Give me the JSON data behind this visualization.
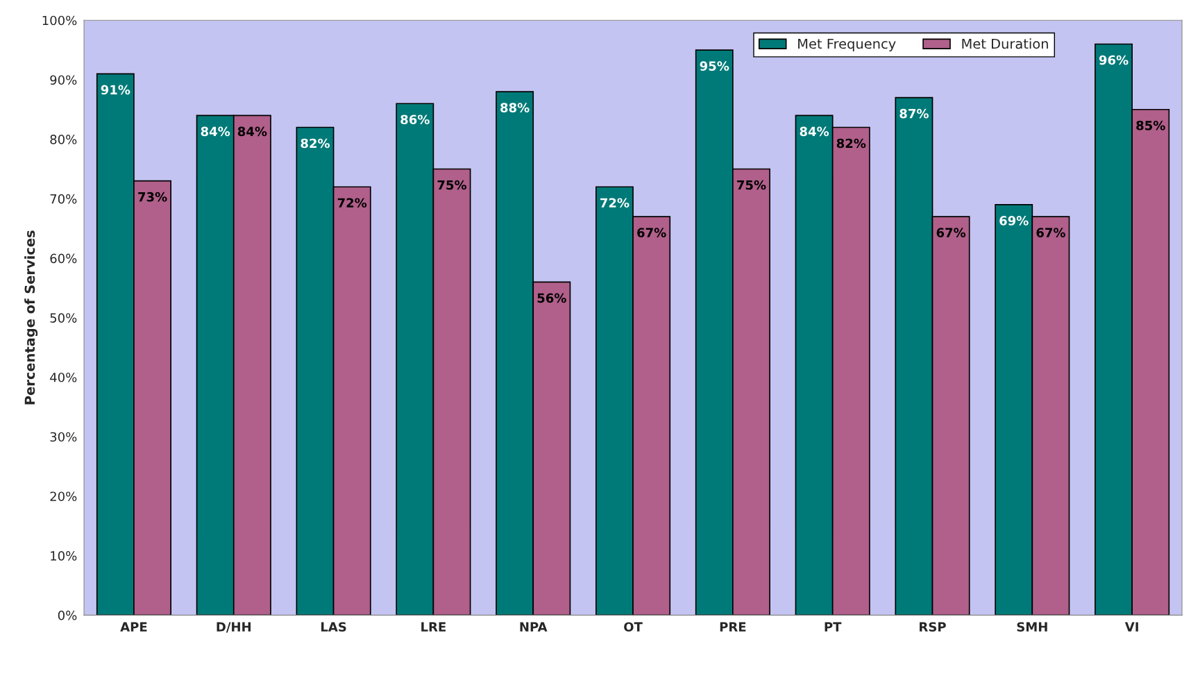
{
  "chart_data": {
    "type": "bar",
    "ylabel": "Percentage of Services",
    "categories": [
      "APE",
      "D/HH",
      "LAS",
      "LRE",
      "NPA",
      "OT",
      "PRE",
      "PT",
      "RSP",
      "SMH",
      "VI"
    ],
    "series": [
      {
        "name": "Met Frequency",
        "color": "#007a78",
        "values": [
          91,
          84,
          82,
          86,
          88,
          72,
          95,
          84,
          87,
          69,
          96
        ],
        "value_labels": [
          "91%",
          "84%",
          "82%",
          "86%",
          "88%",
          "72%",
          "95%",
          "84%",
          "87%",
          "69%",
          "96%"
        ]
      },
      {
        "name": "Met Duration",
        "color": "#b0608a",
        "values": [
          73,
          84,
          72,
          75,
          56,
          67,
          75,
          82,
          67,
          67,
          85
        ],
        "value_labels": [
          "73%",
          "84%",
          "72%",
          "75%",
          "56%",
          "67%",
          "75%",
          "82%",
          "67%",
          "67%",
          "85%"
        ]
      }
    ],
    "ylim": [
      0,
      100
    ],
    "yticks": [
      {
        "value": 0,
        "label": "0%"
      },
      {
        "value": 10,
        "label": "10%"
      },
      {
        "value": 20,
        "label": "20%"
      },
      {
        "value": 30,
        "label": "30%"
      },
      {
        "value": 40,
        "label": "40%"
      },
      {
        "value": 50,
        "label": "50%"
      },
      {
        "value": 60,
        "label": "60%"
      },
      {
        "value": 70,
        "label": "70%"
      },
      {
        "value": 80,
        "label": "80%"
      },
      {
        "value": 90,
        "label": "90%"
      },
      {
        "value": 100,
        "label": "100%"
      }
    ],
    "grid": false,
    "legend": "top right"
  }
}
